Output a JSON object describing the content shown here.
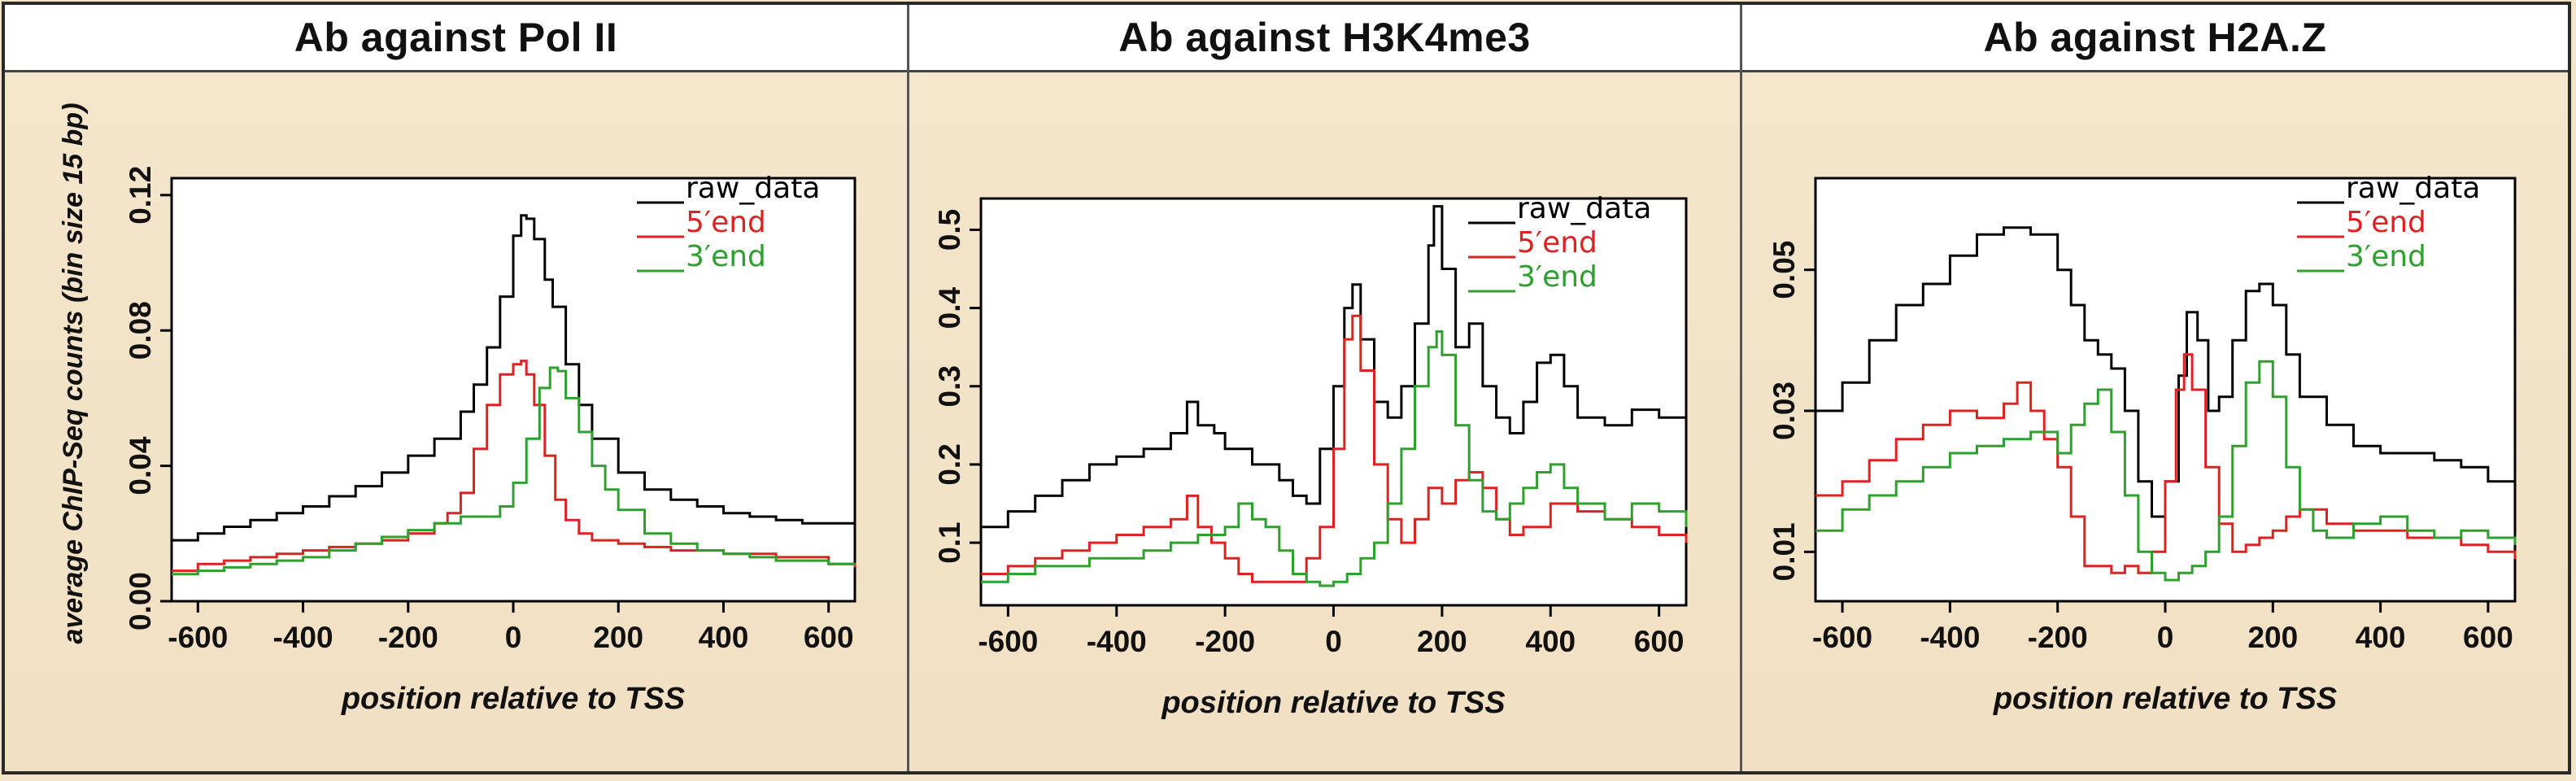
{
  "ylabel": "average ChIP-Seq counts (bin size 15 bp)",
  "chart_data": [
    {
      "type": "line",
      "title": "Ab against Pol II",
      "xlabel": "position relative to TSS",
      "ylabel": "average ChIP-Seq counts (bin size 15 bp)",
      "xlim": [
        -650,
        650
      ],
      "ylim": [
        0,
        0.125
      ],
      "xticks": [
        -600,
        -400,
        -200,
        0,
        200,
        400,
        600
      ],
      "yticks": [
        0.0,
        0.04,
        0.08,
        0.12
      ],
      "ytick_labels": [
        "0.00",
        "0.04",
        "0.08",
        "0.12"
      ],
      "legend_position": "top-right",
      "series": [
        {
          "name": "raw_data",
          "color": "#000000",
          "x": [
            -650,
            -600,
            -550,
            -500,
            -450,
            -400,
            -350,
            -300,
            -250,
            -200,
            -150,
            -100,
            -75,
            -50,
            -25,
            0,
            15,
            25,
            40,
            60,
            75,
            100,
            125,
            150,
            200,
            250,
            300,
            350,
            400,
            450,
            500,
            550,
            600,
            650
          ],
          "y": [
            0.018,
            0.02,
            0.022,
            0.024,
            0.026,
            0.028,
            0.031,
            0.034,
            0.038,
            0.043,
            0.048,
            0.056,
            0.064,
            0.075,
            0.09,
            0.108,
            0.114,
            0.113,
            0.107,
            0.095,
            0.087,
            0.07,
            0.058,
            0.048,
            0.038,
            0.033,
            0.03,
            0.028,
            0.026,
            0.025,
            0.024,
            0.023,
            0.023,
            0.022
          ]
        },
        {
          "name": "5′end",
          "color": "#dd2222",
          "x": [
            -650,
            -600,
            -550,
            -500,
            -450,
            -400,
            -350,
            -300,
            -250,
            -200,
            -150,
            -125,
            -100,
            -75,
            -50,
            -25,
            0,
            15,
            25,
            40,
            60,
            80,
            100,
            125,
            150,
            200,
            250,
            300,
            400,
            500,
            600,
            650
          ],
          "y": [
            0.009,
            0.011,
            0.012,
            0.013,
            0.014,
            0.015,
            0.016,
            0.017,
            0.018,
            0.02,
            0.023,
            0.026,
            0.032,
            0.045,
            0.058,
            0.067,
            0.07,
            0.071,
            0.067,
            0.058,
            0.043,
            0.03,
            0.024,
            0.02,
            0.018,
            0.017,
            0.016,
            0.015,
            0.014,
            0.013,
            0.011,
            0.01
          ]
        },
        {
          "name": "3′end",
          "color": "#2ea02e",
          "x": [
            -650,
            -600,
            -550,
            -500,
            -450,
            -400,
            -350,
            -300,
            -250,
            -200,
            -150,
            -100,
            -50,
            -25,
            0,
            25,
            50,
            70,
            85,
            100,
            125,
            150,
            175,
            200,
            250,
            300,
            350,
            400,
            450,
            500,
            550,
            600,
            650
          ],
          "y": [
            0.008,
            0.009,
            0.01,
            0.011,
            0.012,
            0.013,
            0.015,
            0.017,
            0.019,
            0.021,
            0.023,
            0.025,
            0.025,
            0.028,
            0.035,
            0.048,
            0.063,
            0.069,
            0.068,
            0.06,
            0.05,
            0.04,
            0.033,
            0.027,
            0.02,
            0.017,
            0.015,
            0.014,
            0.013,
            0.012,
            0.012,
            0.011,
            0.011
          ]
        }
      ]
    },
    {
      "type": "line",
      "title": "Ab against H3K4me3",
      "xlabel": "position relative to TSS",
      "ylabel": "",
      "xlim": [
        -650,
        650
      ],
      "ylim": [
        0.02,
        0.54
      ],
      "xticks": [
        -600,
        -400,
        -200,
        0,
        200,
        400,
        600
      ],
      "yticks": [
        0.1,
        0.2,
        0.3,
        0.4,
        0.5
      ],
      "ytick_labels": [
        "0.1",
        "0.2",
        "0.3",
        "0.4",
        "0.5"
      ],
      "legend_position": "top-right",
      "series": [
        {
          "name": "raw_data",
          "color": "#000000",
          "x": [
            -650,
            -600,
            -550,
            -500,
            -450,
            -400,
            -350,
            -300,
            -270,
            -250,
            -220,
            -200,
            -150,
            -100,
            -75,
            -50,
            -25,
            0,
            20,
            35,
            50,
            75,
            100,
            125,
            150,
            175,
            185,
            200,
            225,
            250,
            275,
            300,
            325,
            350,
            375,
            400,
            425,
            450,
            500,
            550,
            600,
            650
          ],
          "y": [
            0.12,
            0.14,
            0.16,
            0.18,
            0.2,
            0.21,
            0.22,
            0.24,
            0.28,
            0.25,
            0.24,
            0.22,
            0.2,
            0.18,
            0.16,
            0.15,
            0.22,
            0.3,
            0.4,
            0.43,
            0.36,
            0.28,
            0.26,
            0.3,
            0.38,
            0.48,
            0.53,
            0.45,
            0.35,
            0.38,
            0.3,
            0.26,
            0.24,
            0.28,
            0.33,
            0.34,
            0.3,
            0.26,
            0.25,
            0.27,
            0.26,
            0.22
          ]
        },
        {
          "name": "5′end",
          "color": "#dd2222",
          "x": [
            -650,
            -600,
            -550,
            -500,
            -450,
            -400,
            -350,
            -300,
            -270,
            -250,
            -225,
            -200,
            -175,
            -150,
            -100,
            -50,
            -25,
            0,
            20,
            35,
            50,
            75,
            100,
            125,
            150,
            175,
            200,
            225,
            250,
            275,
            300,
            325,
            350,
            400,
            450,
            500,
            550,
            600,
            650
          ],
          "y": [
            0.06,
            0.07,
            0.08,
            0.09,
            0.1,
            0.11,
            0.12,
            0.13,
            0.16,
            0.12,
            0.1,
            0.08,
            0.06,
            0.05,
            0.05,
            0.08,
            0.12,
            0.22,
            0.36,
            0.39,
            0.32,
            0.2,
            0.13,
            0.1,
            0.13,
            0.17,
            0.15,
            0.18,
            0.19,
            0.17,
            0.13,
            0.11,
            0.12,
            0.15,
            0.14,
            0.13,
            0.12,
            0.11,
            0.1
          ]
        },
        {
          "name": "3′end",
          "color": "#2ea02e",
          "x": [
            -650,
            -600,
            -550,
            -500,
            -450,
            -400,
            -350,
            -300,
            -250,
            -200,
            -175,
            -150,
            -125,
            -100,
            -75,
            -50,
            -25,
            0,
            25,
            50,
            75,
            100,
            125,
            150,
            175,
            190,
            200,
            225,
            250,
            275,
            300,
            325,
            350,
            375,
            400,
            425,
            450,
            500,
            550,
            600,
            650
          ],
          "y": [
            0.05,
            0.06,
            0.07,
            0.07,
            0.08,
            0.08,
            0.09,
            0.1,
            0.11,
            0.12,
            0.15,
            0.13,
            0.12,
            0.09,
            0.06,
            0.05,
            0.045,
            0.05,
            0.06,
            0.08,
            0.1,
            0.15,
            0.22,
            0.3,
            0.35,
            0.37,
            0.34,
            0.25,
            0.18,
            0.14,
            0.13,
            0.15,
            0.17,
            0.19,
            0.2,
            0.17,
            0.15,
            0.13,
            0.15,
            0.14,
            0.12
          ]
        }
      ]
    },
    {
      "type": "line",
      "title": "Ab against H2A.Z",
      "xlabel": "position relative to TSS",
      "ylabel": "",
      "xlim": [
        -650,
        650
      ],
      "ylim": [
        0.003,
        0.063
      ],
      "xticks": [
        -600,
        -400,
        -200,
        0,
        200,
        400,
        600
      ],
      "yticks": [
        0.01,
        0.03,
        0.05
      ],
      "ytick_labels": [
        "0.01",
        "0.03",
        "0.05"
      ],
      "legend_position": "top-right",
      "series": [
        {
          "name": "raw_data",
          "color": "#000000",
          "x": [
            -650,
            -600,
            -550,
            -500,
            -450,
            -400,
            -350,
            -300,
            -250,
            -200,
            -175,
            -150,
            -125,
            -100,
            -75,
            -50,
            -25,
            0,
            25,
            40,
            60,
            80,
            100,
            125,
            150,
            175,
            200,
            225,
            250,
            300,
            350,
            400,
            450,
            500,
            550,
            600,
            650
          ],
          "y": [
            0.03,
            0.034,
            0.04,
            0.045,
            0.048,
            0.052,
            0.055,
            0.056,
            0.055,
            0.05,
            0.045,
            0.04,
            0.038,
            0.036,
            0.03,
            0.02,
            0.015,
            0.02,
            0.035,
            0.044,
            0.04,
            0.03,
            0.032,
            0.04,
            0.047,
            0.048,
            0.045,
            0.038,
            0.032,
            0.028,
            0.025,
            0.024,
            0.024,
            0.023,
            0.022,
            0.02,
            0.018
          ]
        },
        {
          "name": "5′end",
          "color": "#dd2222",
          "x": [
            -650,
            -600,
            -550,
            -500,
            -450,
            -400,
            -350,
            -300,
            -275,
            -250,
            -225,
            -200,
            -175,
            -150,
            -125,
            -100,
            -75,
            -50,
            -25,
            0,
            20,
            35,
            50,
            75,
            100,
            125,
            150,
            175,
            200,
            225,
            250,
            300,
            350,
            400,
            450,
            500,
            550,
            600,
            650
          ],
          "y": [
            0.018,
            0.02,
            0.023,
            0.026,
            0.028,
            0.03,
            0.029,
            0.031,
            0.034,
            0.03,
            0.026,
            0.022,
            0.015,
            0.008,
            0.008,
            0.007,
            0.008,
            0.007,
            0.01,
            0.02,
            0.033,
            0.038,
            0.033,
            0.022,
            0.014,
            0.01,
            0.011,
            0.012,
            0.013,
            0.015,
            0.016,
            0.014,
            0.013,
            0.013,
            0.012,
            0.012,
            0.011,
            0.01,
            0.009
          ]
        },
        {
          "name": "3′end",
          "color": "#2ea02e",
          "x": [
            -650,
            -600,
            -550,
            -500,
            -450,
            -400,
            -350,
            -300,
            -250,
            -200,
            -175,
            -150,
            -125,
            -100,
            -75,
            -50,
            -25,
            0,
            25,
            50,
            75,
            100,
            125,
            150,
            175,
            200,
            225,
            250,
            275,
            300,
            350,
            400,
            450,
            500,
            550,
            600,
            650
          ],
          "y": [
            0.013,
            0.016,
            0.018,
            0.02,
            0.022,
            0.024,
            0.025,
            0.026,
            0.027,
            0.024,
            0.028,
            0.031,
            0.033,
            0.027,
            0.018,
            0.01,
            0.007,
            0.006,
            0.007,
            0.008,
            0.01,
            0.015,
            0.025,
            0.034,
            0.037,
            0.032,
            0.022,
            0.016,
            0.013,
            0.012,
            0.014,
            0.015,
            0.013,
            0.012,
            0.013,
            0.012,
            0.011
          ]
        }
      ]
    }
  ]
}
